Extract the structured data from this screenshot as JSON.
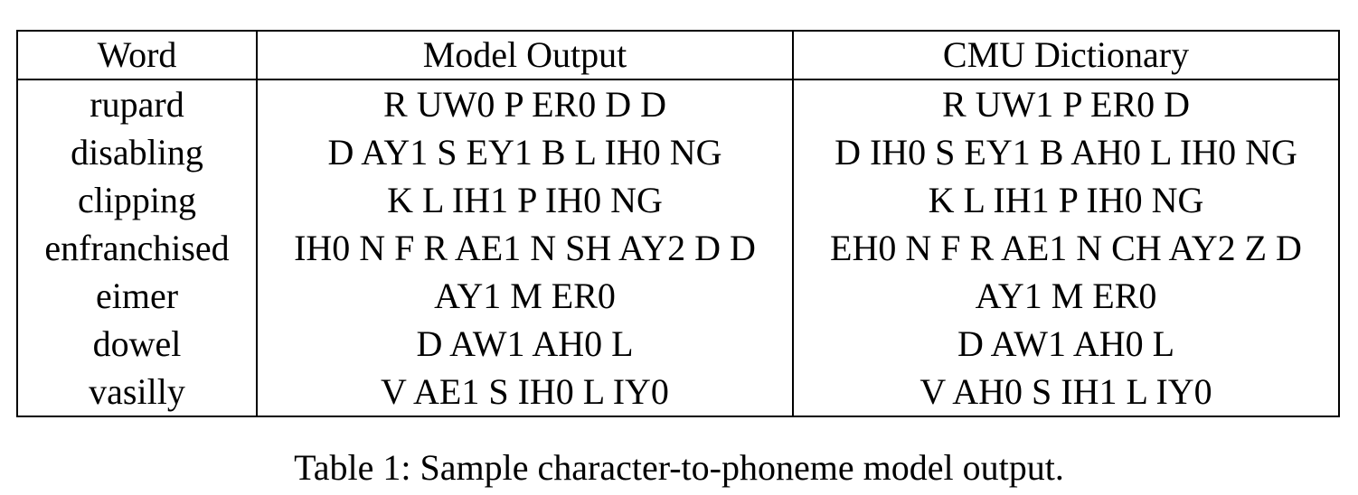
{
  "table": {
    "headers": [
      "Word",
      "Model Output",
      "CMU Dictionary"
    ],
    "rows": [
      [
        "rupard",
        "R UW0 P ER0 D D",
        "R UW1 P ER0 D"
      ],
      [
        "disabling",
        "D AY1 S EY1 B L IH0 NG",
        "D IH0 S EY1 B AH0 L IH0 NG"
      ],
      [
        "clipping",
        "K L IH1 P IH0 NG",
        "K L IH1 P IH0 NG"
      ],
      [
        "enfranchised",
        "IH0 N F R AE1 N SH AY2 D D",
        "EH0 N F R AE1 N CH AY2 Z D"
      ],
      [
        "eimer",
        "AY1 M ER0",
        "AY1 M ER0"
      ],
      [
        "dowel",
        "D AW1 AH0 L",
        "D AW1 AH0 L"
      ],
      [
        "vasilly",
        "V AE1 S IH0 L IY0",
        "V AH0 S IH1 L IY0"
      ]
    ]
  },
  "caption": "Table 1: Sample character-to-phoneme model output."
}
